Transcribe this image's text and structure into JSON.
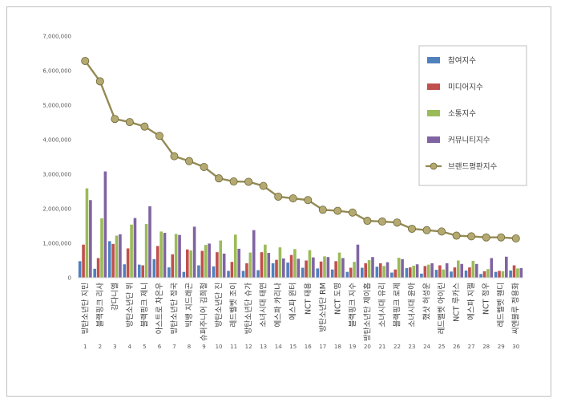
{
  "chart_data": {
    "type": "bar",
    "y_ticks": [
      "0",
      "1,000,000",
      "2,000,000",
      "3,000,000",
      "4,000,000",
      "5,000,000",
      "6,000,000",
      "7,000,000"
    ],
    "ylim": [
      0,
      7000000
    ],
    "grid": false,
    "legend_position": "top-right",
    "ranks": [
      "1",
      "2",
      "3",
      "4",
      "5",
      "6",
      "7",
      "8",
      "9",
      "10",
      "11",
      "12",
      "13",
      "14",
      "15",
      "16",
      "17",
      "18",
      "19",
      "20",
      "21",
      "22",
      "23",
      "24",
      "25",
      "26",
      "27",
      "28",
      "29",
      "30"
    ],
    "categories": [
      "방탄소년단 지민",
      "블랙핑크 리사",
      "강다니엘",
      "방탄소년단 뷔",
      "블랙핑크 제니",
      "아스트로 차은우",
      "방탄소년단 정국",
      "빅뱅 지드래곤",
      "슈퍼주니어 김희철",
      "방탄소년단 진",
      "레드벨벳 조이",
      "방탄소년단 슈가",
      "소녀시대 태연",
      "에스파 카리나",
      "에스파 윈터",
      "NCT 태용",
      "방탄소년단 RM",
      "NCT 도영",
      "블랙핑크 지수",
      "방탄소년단 제이홉",
      "소녀시대 유리",
      "블랙핑크 로제",
      "소녀시대 윤아",
      "했샷 허성운",
      "레드벨벳 아이린",
      "NCT 루카스",
      "에스파 지젤",
      "NCT 정우",
      "레드벨벳 웬디",
      "씨엔블루 정용화"
    ],
    "series": [
      {
        "name": "참여지수",
        "kind": "bar",
        "color": "#4f81bd",
        "values": [
          480000,
          260000,
          1060000,
          390000,
          380000,
          540000,
          300000,
          170000,
          360000,
          330000,
          200000,
          200000,
          220000,
          420000,
          440000,
          290000,
          270000,
          240000,
          170000,
          290000,
          320000,
          150000,
          280000,
          120000,
          230000,
          180000,
          210000,
          110000,
          170000,
          210000
        ]
      },
      {
        "name": "미디어지수",
        "kind": "bar",
        "color": "#c0504d",
        "values": [
          960000,
          570000,
          980000,
          850000,
          360000,
          920000,
          680000,
          820000,
          780000,
          740000,
          460000,
          420000,
          740000,
          520000,
          660000,
          500000,
          470000,
          480000,
          290000,
          420000,
          420000,
          240000,
          300000,
          340000,
          360000,
          300000,
          300000,
          190000,
          200000,
          360000
        ]
      },
      {
        "name": "소통지수",
        "kind": "bar",
        "color": "#9bbb59",
        "values": [
          2590000,
          1720000,
          1220000,
          1540000,
          1560000,
          1340000,
          1270000,
          790000,
          950000,
          1080000,
          1250000,
          730000,
          960000,
          880000,
          830000,
          800000,
          620000,
          730000,
          460000,
          510000,
          340000,
          580000,
          350000,
          380000,
          240000,
          500000,
          490000,
          250000,
          190000,
          270000
        ]
      },
      {
        "name": "커뮤니티지수",
        "kind": "bar",
        "color": "#8064a2",
        "values": [
          2250000,
          3080000,
          1260000,
          1730000,
          2070000,
          1300000,
          1240000,
          1480000,
          990000,
          700000,
          840000,
          1380000,
          720000,
          560000,
          550000,
          590000,
          600000,
          570000,
          960000,
          600000,
          450000,
          540000,
          390000,
          420000,
          420000,
          400000,
          400000,
          570000,
          610000,
          280000
        ]
      },
      {
        "name": "브랜드평판지수",
        "kind": "line",
        "color": "#948a54",
        "values": [
          6280000,
          5690000,
          4600000,
          4510000,
          4380000,
          4110000,
          3520000,
          3380000,
          3210000,
          2880000,
          2790000,
          2780000,
          2660000,
          2350000,
          2300000,
          2250000,
          1970000,
          1940000,
          1890000,
          1650000,
          1630000,
          1600000,
          1420000,
          1380000,
          1340000,
          1220000,
          1200000,
          1170000,
          1170000,
          1140000
        ]
      }
    ]
  }
}
